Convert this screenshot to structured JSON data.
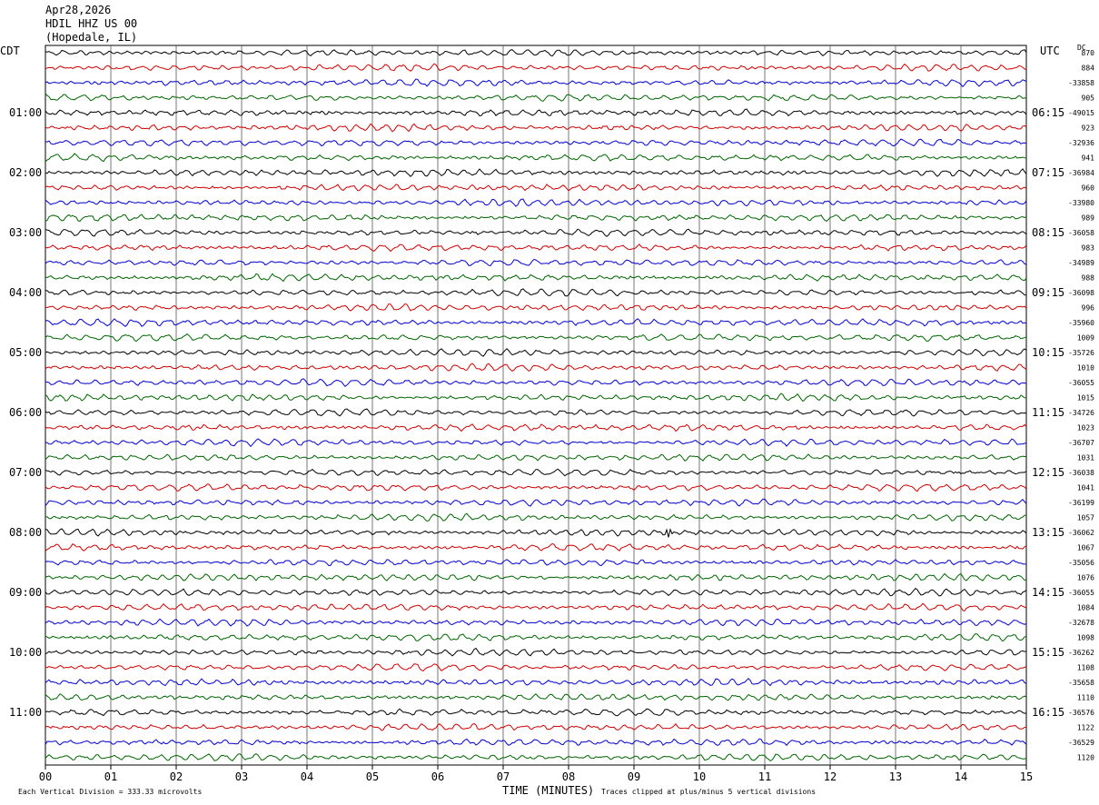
{
  "header": {
    "date": "Apr28,2026",
    "station": "HDIL HHZ US 00",
    "location": "(Hopedale, IL)"
  },
  "left_axis_label": "CDT",
  "right_axis_label": "UTC",
  "dc_label": "DC",
  "footer": {
    "scale": "Each Vertical Division =  333.33 microvolts",
    "xlabel": "TIME (MINUTES)",
    "clip_note": "Traces clipped at plus/minus 5 vertical divisions"
  },
  "colors": {
    "trace_cycle": [
      "#000000",
      "#cc0000",
      "#0000cc",
      "#006400"
    ],
    "grid": "#000000"
  },
  "chart_data": {
    "type": "line",
    "title": "",
    "xlabel": "TIME (MINUTES)",
    "xlim": [
      0,
      15
    ],
    "x_ticks": [
      "00",
      "01",
      "02",
      "03",
      "04",
      "05",
      "06",
      "07",
      "08",
      "09",
      "10",
      "11",
      "12",
      "13",
      "14",
      "15"
    ],
    "rows_per_hour": 4,
    "row_minutes": 15,
    "left_time_labels": [
      "01:00",
      "02:00",
      "03:00",
      "04:00",
      "05:00",
      "06:00",
      "07:00",
      "08:00",
      "09:00",
      "10:00",
      "11:00"
    ],
    "right_time_labels": [
      "06:15",
      "07:15",
      "08:15",
      "09:15",
      "10:15",
      "11:15",
      "12:15",
      "13:15",
      "14:15",
      "15:15",
      "16:15"
    ],
    "dc_offsets": [
      "870",
      "884",
      "-33858",
      "905",
      "-49015",
      "923",
      "-32936",
      "941",
      "-36984",
      "960",
      "-33980",
      "989",
      "-36058",
      "983",
      "-34989",
      "988",
      "-36098",
      "996",
      "-35960",
      "1009",
      "-35726",
      "1010",
      "-36055",
      "1015",
      "-34726",
      "1023",
      "-36707",
      "1031",
      "-36038",
      "1041",
      "-36199",
      "1057",
      "-36062",
      "1067",
      "-35056",
      "1076",
      "-36055",
      "1084",
      "-32678",
      "1098",
      "-36262",
      "1108",
      "-35658",
      "1110",
      "-36576",
      "1122",
      "-36529",
      "1120"
    ],
    "event": {
      "row": 32,
      "minute": 9.5
    }
  }
}
